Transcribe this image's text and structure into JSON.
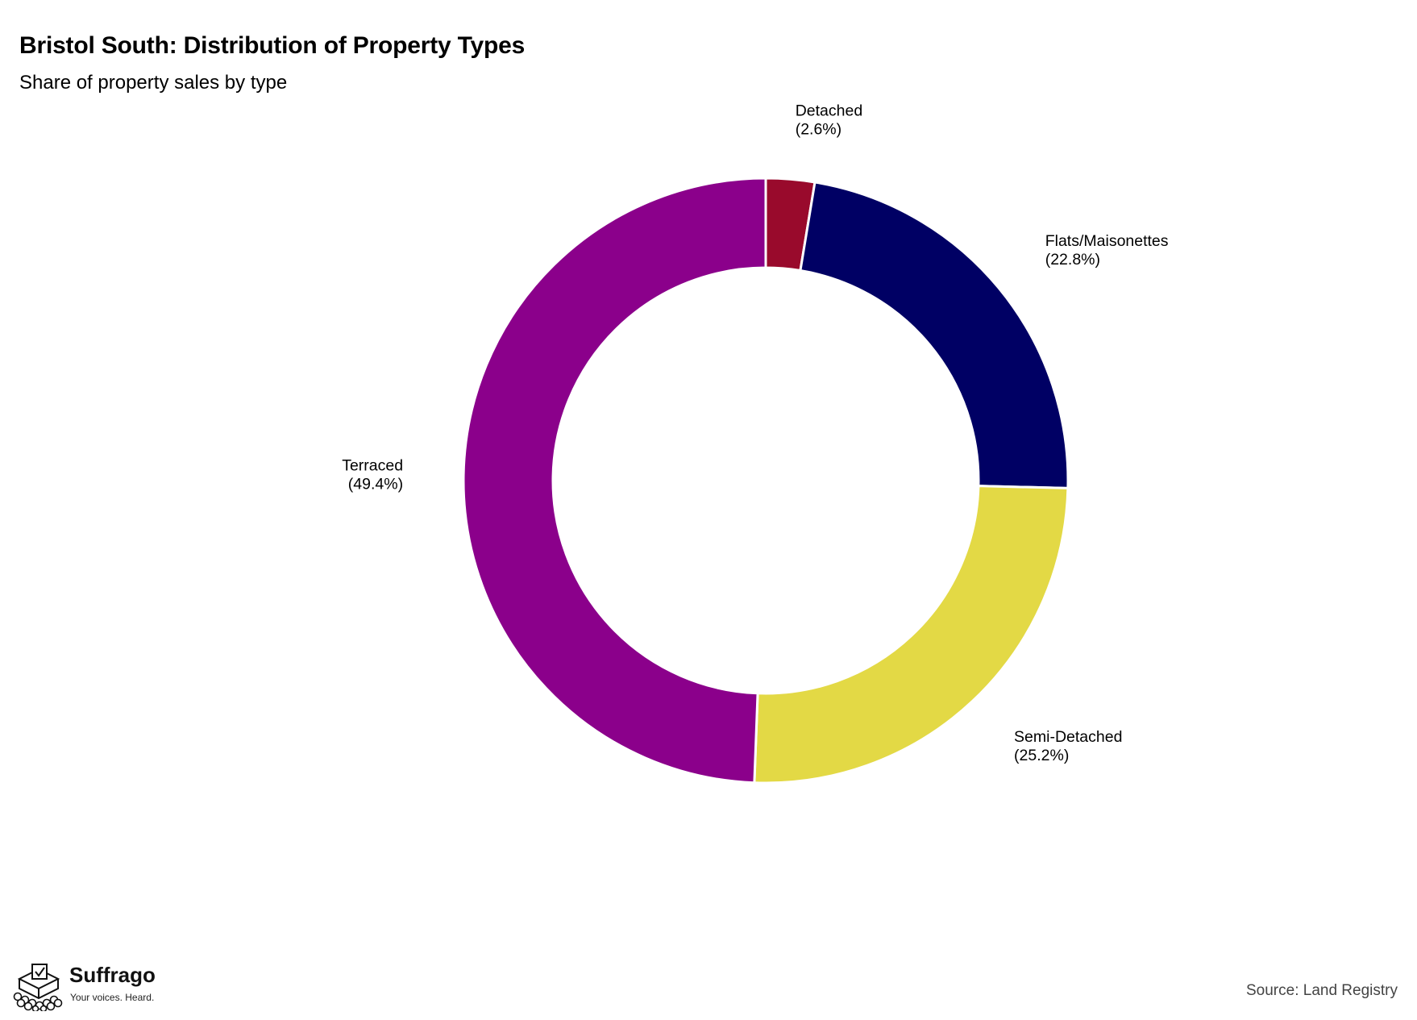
{
  "header": {
    "title": "Bristol South: Distribution of Property Types",
    "subtitle": "Share of property sales by type"
  },
  "footer": {
    "source": "Source: Land Registry",
    "brand_name": "Suffrago",
    "brand_tagline": "Your voices. Heard.",
    "brand_icon": "ballot-box-icon"
  },
  "chart_data": {
    "type": "pie",
    "style": "donut",
    "title": "Bristol South: Distribution of Property Types",
    "subtitle": "Share of property sales by type",
    "start": "top",
    "direction": "clockwise",
    "slices": [
      {
        "name": "Detached",
        "value": 2.6,
        "label": "(2.6%)",
        "color": "#990a2c"
      },
      {
        "name": "Flats/Maisonettes",
        "value": 22.8,
        "label": "(22.8%)",
        "color": "#000064"
      },
      {
        "name": "Semi-Detached",
        "value": 25.2,
        "label": "(25.2%)",
        "color": "#e3d945"
      },
      {
        "name": "Terraced",
        "value": 49.4,
        "label": "(49.4%)",
        "color": "#8b008b"
      }
    ],
    "legend": "none",
    "source": "Source: Land Registry"
  }
}
